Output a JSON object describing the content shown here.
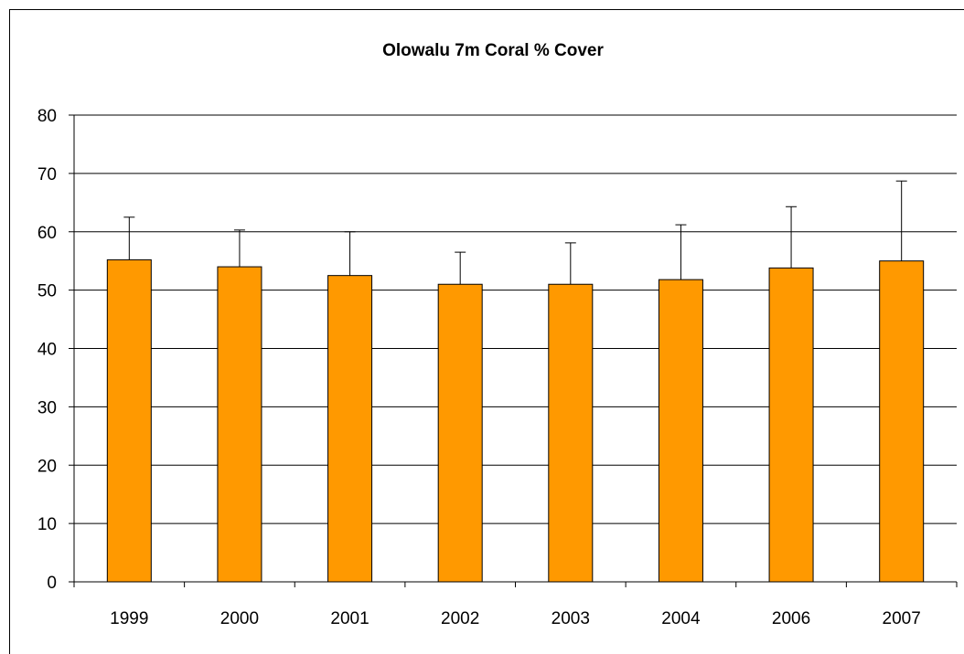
{
  "chart_data": {
    "type": "bar",
    "title": "Olowalu 7m Coral % Cover",
    "xlabel": "",
    "ylabel": "",
    "categories": [
      "1999",
      "2000",
      "2001",
      "2002",
      "2003",
      "2004",
      "2006",
      "2007"
    ],
    "values": [
      55.2,
      54.0,
      52.5,
      51.0,
      51.0,
      51.8,
      53.8,
      55.0
    ],
    "error_upper": [
      62.5,
      60.3,
      60.0,
      56.5,
      58.1,
      61.2,
      64.3,
      68.7
    ],
    "ylim": [
      0,
      80
    ],
    "yticks": [
      "0",
      "10",
      "20",
      "30",
      "40",
      "50",
      "60",
      "70",
      "80"
    ],
    "grid": true,
    "legend": "none",
    "colors": {
      "bar": "#ff9900",
      "bar_edge": "#000000",
      "grid": "#000000"
    }
  }
}
